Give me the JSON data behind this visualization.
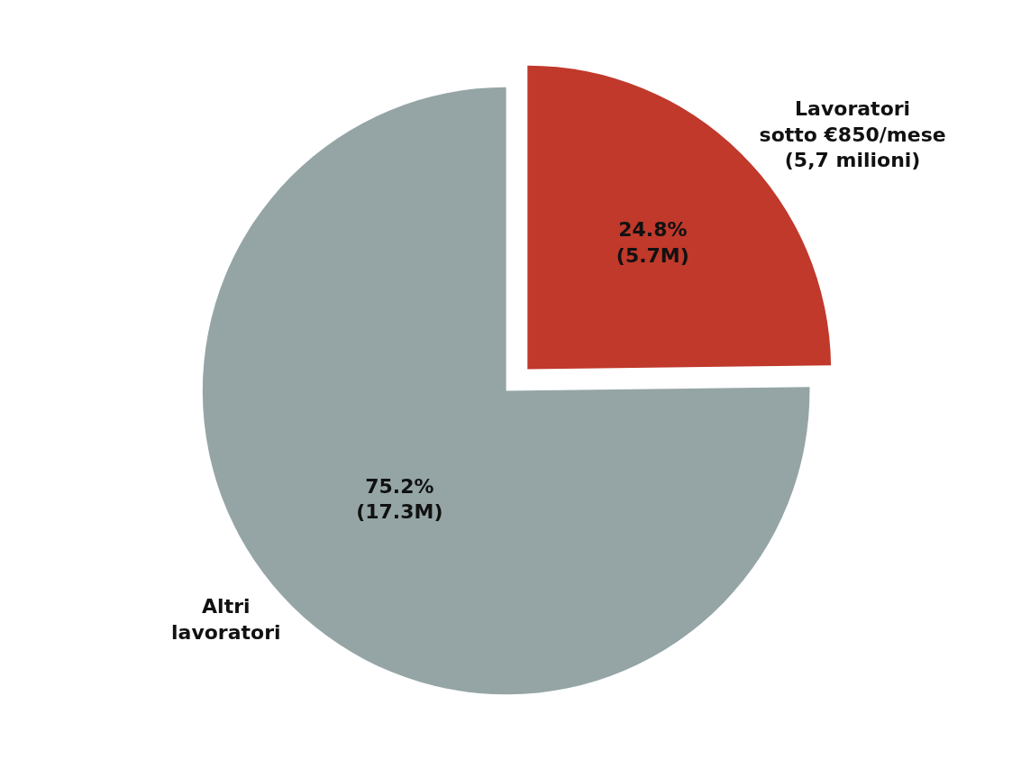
{
  "chart_data": {
    "type": "pie",
    "categories": [
      "Lavoratori\nsotto €850/mese\n(5,7 milioni)",
      "Altri\nlavoratori"
    ],
    "values": [
      24.8,
      75.2
    ],
    "value_labels": [
      "24.8%\n(5.7M)",
      "75.2%\n(17.3M)"
    ],
    "colors": [
      "#c0392b",
      "#95a5a6"
    ],
    "legend": false
  }
}
